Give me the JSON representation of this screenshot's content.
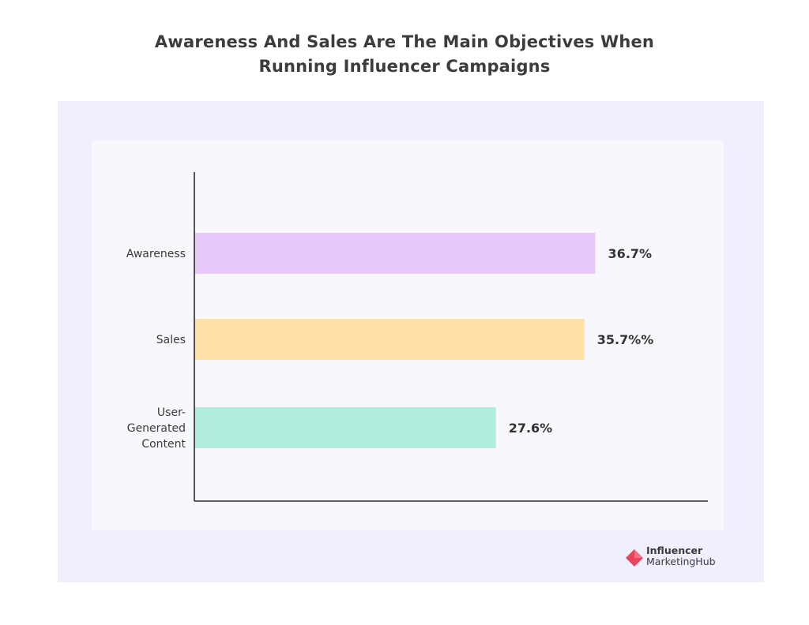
{
  "title": {
    "line1": "Awareness And Sales Are The Main Objectives When",
    "line2": "Running Influencer Campaigns"
  },
  "chart_data": {
    "type": "bar",
    "orientation": "horizontal",
    "categories": [
      "Awareness",
      "Sales",
      "User-Generated Content"
    ],
    "category_label_lines": [
      [
        "Awareness"
      ],
      [
        "Sales"
      ],
      [
        "User-",
        "Generated",
        "Content"
      ]
    ],
    "values": [
      36.7,
      35.7,
      27.6
    ],
    "value_labels": [
      "36.7%",
      "35.7%%",
      "27.6%"
    ],
    "bar_colors": [
      "#e7c9fd",
      "#fee0a8",
      "#b2eee0"
    ],
    "xlim": [
      0,
      47
    ],
    "xlabel": "",
    "ylabel": "",
    "grid": false,
    "legend": "none"
  },
  "brand": {
    "line1": "Influencer",
    "line2": "MarketingHub",
    "mark_color": "#e8455d"
  }
}
